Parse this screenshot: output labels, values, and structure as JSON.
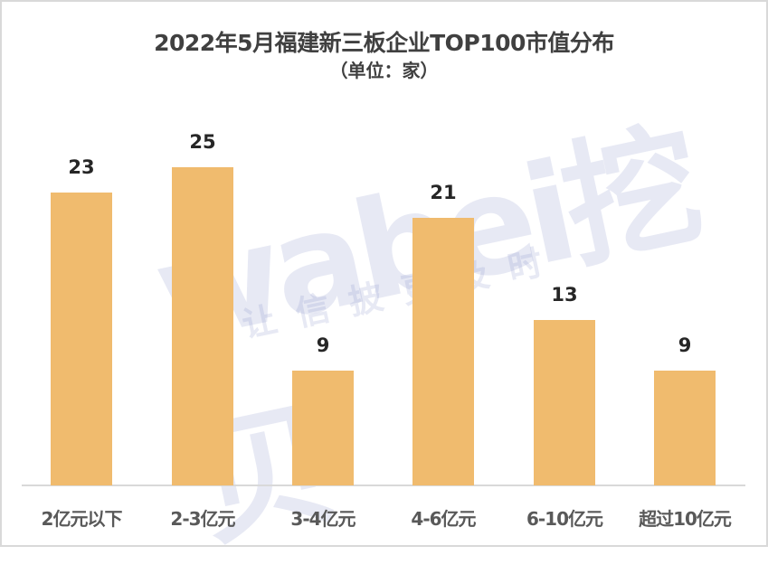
{
  "chart_data": {
    "type": "bar",
    "title": "2022年5月福建新三板企业TOP100市值分布",
    "subtitle": "（单位：家）",
    "categories": [
      "2亿元以下",
      "2-3亿元",
      "3-4亿元",
      "4-6亿元",
      "6-10亿元",
      "超过10亿元"
    ],
    "values": [
      23,
      25,
      9,
      21,
      13,
      9
    ],
    "xlabel": "",
    "ylabel": "",
    "ylim": [
      0,
      31
    ],
    "grid": false,
    "legend": null,
    "data_labels": true,
    "bar_color": "#f0bb6e"
  },
  "labels": {
    "values": [
      "23",
      "25",
      "9",
      "21",
      "13",
      "9"
    ]
  },
  "watermark": {
    "brand": "wabei挖贝",
    "slogan": "让信披更及时"
  }
}
